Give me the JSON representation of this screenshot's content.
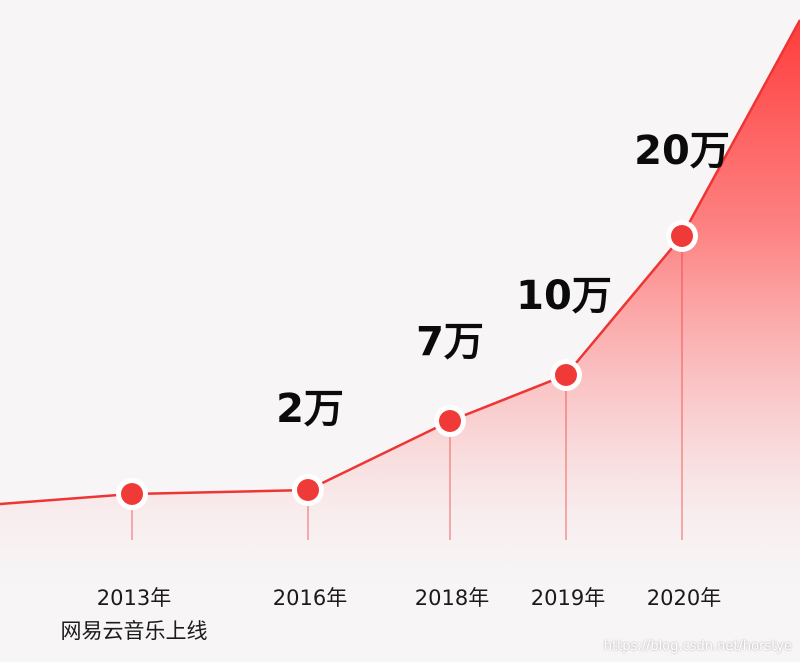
{
  "chart_data": {
    "type": "area",
    "title": "",
    "xlabel": "",
    "ylabel": "",
    "points": [
      {
        "year": "2013年",
        "note": "网易云音乐上线",
        "value": 0,
        "value_label": ""
      },
      {
        "year": "2016年",
        "note": "",
        "value": 2,
        "value_label": "2万"
      },
      {
        "year": "2018年",
        "note": "",
        "value": 7,
        "value_label": "7万"
      },
      {
        "year": "2019年",
        "note": "",
        "value": 10,
        "value_label": "10万"
      },
      {
        "year": "2020年",
        "note": "",
        "value": 20,
        "value_label": "20万"
      }
    ],
    "colors": {
      "line": "#ee3534",
      "marker": "#f03a38",
      "marker_ring": "#ffffff",
      "fill_top": "#ff4444",
      "background": "#f7f5f6"
    },
    "grid": false,
    "legend": "none"
  },
  "watermark": "https://blog.csdn.net/horstye"
}
